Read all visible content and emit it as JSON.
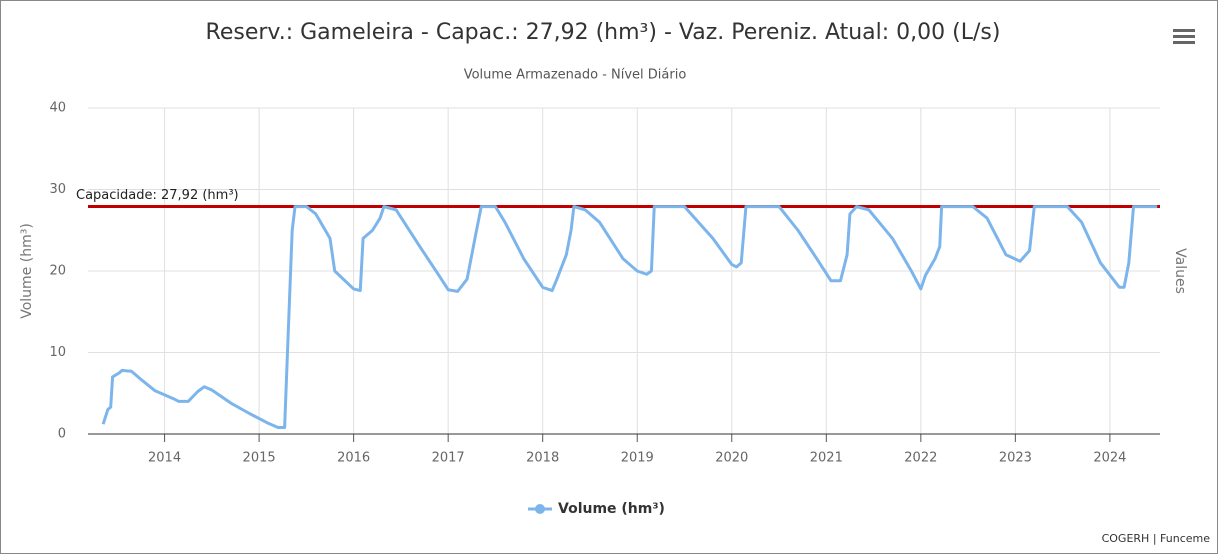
{
  "chart_data": {
    "type": "line",
    "title": "Reserv.: Gameleira - Capac.: 27,92 (hm³) - Vaz. Pereniz. Atual: 0,00 (L/s)",
    "subtitle": "Volume Armazenado - Nível Diário",
    "y_axis_label": "Volume (hm³)",
    "y2_axis_label": "Values",
    "credits": "COGERH | Funceme",
    "xlim": [
      2013.19,
      2024.53
    ],
    "xticks": [
      2014,
      2015,
      2016,
      2017,
      2018,
      2019,
      2020,
      2021,
      2022,
      2023,
      2024
    ],
    "ylim": [
      0,
      40
    ],
    "yticks": [
      0,
      10,
      20,
      30,
      40
    ],
    "grid": true,
    "capacity": {
      "value": 27.92,
      "label": "Capacidade: 27,92 (hm³)",
      "color": "#c00000"
    },
    "series": [
      {
        "name": "Volume (hm³)",
        "color": "#7cb5ec",
        "x": [
          2013.35,
          2013.4,
          2013.43,
          2013.45,
          2013.52,
          2013.55,
          2013.65,
          2013.75,
          2013.9,
          2014.1,
          2014.15,
          2014.25,
          2014.35,
          2014.42,
          2014.5,
          2014.7,
          2014.9,
          2015.1,
          2015.2,
          2015.27,
          2015.3,
          2015.35,
          2015.38,
          2015.5,
          2015.6,
          2015.75,
          2015.8,
          2016.0,
          2016.07,
          2016.1,
          2016.2,
          2016.28,
          2016.32,
          2016.45,
          2016.7,
          2016.9,
          2017.0,
          2017.1,
          2017.2,
          2017.3,
          2017.35,
          2017.5,
          2017.6,
          2017.8,
          2018.0,
          2018.1,
          2018.15,
          2018.25,
          2018.3,
          2018.33,
          2018.45,
          2018.6,
          2018.85,
          2019.0,
          2019.1,
          2019.15,
          2019.18,
          2019.5,
          2019.8,
          2020.0,
          2020.05,
          2020.1,
          2020.15,
          2020.5,
          2020.7,
          2020.9,
          2021.05,
          2021.15,
          2021.22,
          2021.25,
          2021.32,
          2021.45,
          2021.7,
          2021.9,
          2022.0,
          2022.05,
          2022.15,
          2022.2,
          2022.22,
          2022.55,
          2022.7,
          2022.9,
          2023.05,
          2023.15,
          2023.2,
          2023.55,
          2023.7,
          2023.9,
          2024.1,
          2024.15,
          2024.2,
          2024.25,
          2024.5
        ],
        "values": [
          1.2,
          3,
          3.3,
          7,
          7.5,
          7.8,
          7.7,
          6.7,
          5.3,
          4.3,
          4.0,
          4.0,
          5.2,
          5.8,
          5.4,
          3.8,
          2.5,
          1.3,
          0.8,
          0.8,
          10,
          25,
          27.9,
          27.9,
          27,
          24,
          20,
          17.8,
          17.6,
          24,
          25,
          26.5,
          27.9,
          27.5,
          23,
          19.5,
          17.7,
          17.5,
          19,
          25,
          27.9,
          27.9,
          26,
          21.5,
          18,
          17.6,
          19,
          22,
          25,
          27.9,
          27.5,
          26,
          21.5,
          20,
          19.6,
          20,
          27.9,
          27.9,
          24,
          20.8,
          20.5,
          21,
          27.9,
          27.9,
          25,
          21.5,
          18.8,
          18.8,
          22,
          27,
          27.9,
          27.5,
          24,
          20,
          17.8,
          19.5,
          21.5,
          23,
          27.9,
          27.9,
          26.5,
          22,
          21.2,
          22.5,
          27.9,
          27.9,
          26,
          21,
          18,
          18,
          21,
          27.9,
          27.9
        ]
      }
    ]
  }
}
